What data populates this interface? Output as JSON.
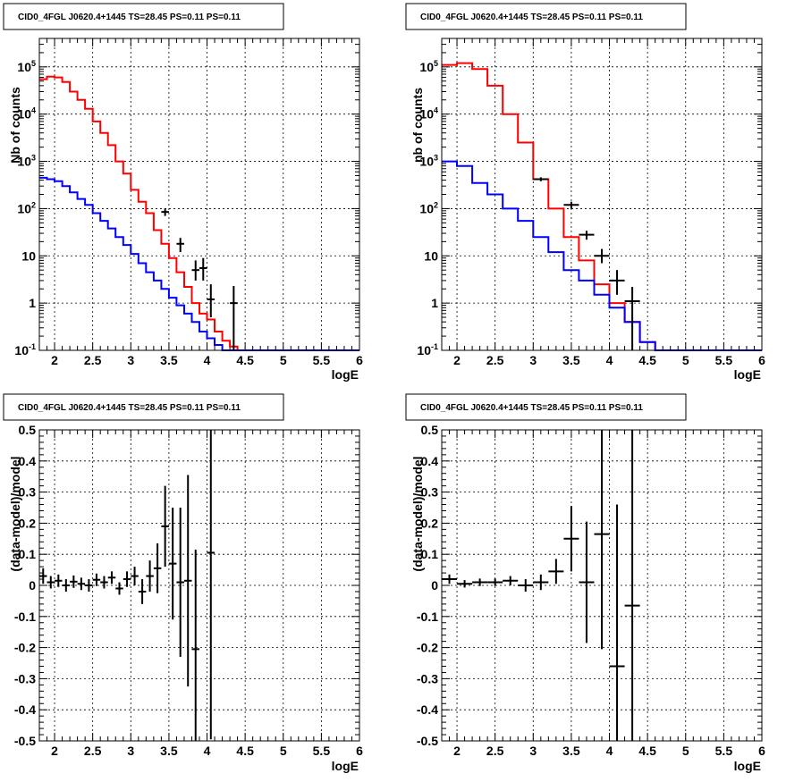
{
  "chart_data": [
    {
      "id": "p1",
      "type": "line",
      "title": "CID0_4FGL J0620.4+1445 TS=28.45 PS=0.11 PS=0.11",
      "xlabel": "logE",
      "ylabel": "Nb of counts",
      "xlim": [
        1.8,
        6.0
      ],
      "ylim": [
        0.1,
        400000
      ],
      "yscale": "log",
      "grid": true,
      "xticks": [
        "2",
        "2.5",
        "3",
        "3.5",
        "4",
        "4.5",
        "5",
        "5.5",
        "6"
      ],
      "yticks": [
        "10^-1",
        "1",
        "10",
        "10^2",
        "10^3",
        "10^4",
        "10^5"
      ],
      "bin_edges": [
        1.8,
        1.9,
        2.0,
        2.1,
        2.2,
        2.3,
        2.4,
        2.5,
        2.6,
        2.7,
        2.8,
        2.9,
        3.0,
        3.1,
        3.2,
        3.3,
        3.4,
        3.5,
        3.6,
        3.7,
        3.8,
        3.9,
        4.0,
        4.1,
        4.2,
        4.3,
        4.4,
        4.5,
        4.6,
        4.7,
        4.8,
        6.0
      ],
      "series": [
        {
          "style": "step",
          "color": "#ff0000",
          "values": [
            55000,
            62000,
            60000,
            48000,
            30000,
            20000,
            13000,
            7000,
            4000,
            2200,
            1000,
            550,
            250,
            140,
            80,
            35,
            18,
            9,
            4.5,
            2.2,
            1.0,
            0.6,
            0.45,
            0.25,
            0.16,
            0.12,
            0.1,
            0.1,
            0.1,
            0.1,
            0.1
          ]
        },
        {
          "style": "step",
          "color": "#0000ff",
          "values": [
            450,
            420,
            380,
            300,
            220,
            160,
            120,
            80,
            55,
            38,
            25,
            17,
            11,
            7,
            4.5,
            3,
            2,
            1.3,
            0.9,
            0.6,
            0.4,
            0.25,
            0.18,
            0.13,
            0.1,
            0.1,
            0.1,
            0.1,
            0.1,
            0.1,
            0.1
          ]
        },
        {
          "style": "errorbar",
          "color": "#000000",
          "xwidth": 0.1,
          "points": [
            {
              "x": 3.45,
              "y": 85,
              "lo": 70,
              "hi": 100
            },
            {
              "x": 3.65,
              "y": 18,
              "lo": 12,
              "hi": 24
            },
            {
              "x": 3.85,
              "y": 5,
              "lo": 3,
              "hi": 8
            },
            {
              "x": 3.95,
              "y": 5.5,
              "lo": 3,
              "hi": 9
            },
            {
              "x": 4.05,
              "y": 1.2,
              "lo": 0.5,
              "hi": 2.5
            },
            {
              "x": 4.35,
              "y": 1.0,
              "lo": 0.1,
              "hi": 2.3
            }
          ]
        }
      ]
    },
    {
      "id": "p2",
      "type": "line",
      "title": "CID0_4FGL J0620.4+1445 TS=28.45 PS=0.11 PS=0.11",
      "xlabel": "logE",
      "ylabel": "nb of counts",
      "xlim": [
        1.8,
        6.0
      ],
      "ylim": [
        0.1,
        400000
      ],
      "yscale": "log",
      "grid": true,
      "xticks": [
        "2",
        "2.5",
        "3",
        "3.5",
        "4",
        "4.5",
        "5",
        "5.5",
        "6"
      ],
      "yticks": [
        "10^-1",
        "1",
        "10",
        "10^2",
        "10^3",
        "10^4",
        "10^5"
      ],
      "bin_edges": [
        1.8,
        2.0,
        2.2,
        2.4,
        2.6,
        2.8,
        3.0,
        3.2,
        3.4,
        3.6,
        3.8,
        4.0,
        4.2,
        4.4,
        4.6,
        4.8,
        6.0
      ],
      "series": [
        {
          "style": "step",
          "color": "#ff0000",
          "values": [
            110000,
            120000,
            90000,
            40000,
            10000,
            2500,
            420,
            100,
            25,
            8,
            2.5,
            1.0,
            0.4,
            0.15,
            0.1,
            0.1
          ]
        },
        {
          "style": "step",
          "color": "#0000ff",
          "values": [
            1000,
            800,
            350,
            200,
            100,
            55,
            25,
            12,
            5,
            3,
            1.5,
            0.8,
            0.4,
            0.15,
            0.1,
            0.1
          ]
        },
        {
          "style": "errorbar",
          "color": "#000000",
          "xwidth": 0.2,
          "points": [
            {
              "x": 3.1,
              "y": 420,
              "lo": 380,
              "hi": 460
            },
            {
              "x": 3.5,
              "y": 120,
              "lo": 100,
              "hi": 140
            },
            {
              "x": 3.7,
              "y": 28,
              "lo": 22,
              "hi": 34
            },
            {
              "x": 3.9,
              "y": 10,
              "lo": 7,
              "hi": 14
            },
            {
              "x": 4.1,
              "y": 3,
              "lo": 1.5,
              "hi": 5
            },
            {
              "x": 4.3,
              "y": 1.1,
              "lo": 0.1,
              "hi": 2.2
            }
          ]
        }
      ]
    },
    {
      "id": "p3",
      "type": "scatter",
      "title": "CID0_4FGL J0620.4+1445 TS=28.45 PS=0.11 PS=0.11",
      "xlabel": "logE",
      "ylabel": "(data-model)/model",
      "xlim": [
        1.8,
        6.0
      ],
      "ylim": [
        -0.5,
        0.5
      ],
      "grid": true,
      "xticks": [
        "2",
        "2.5",
        "3",
        "3.5",
        "4",
        "4.5",
        "5",
        "5.5",
        "6"
      ],
      "yticks": [
        "-0.5",
        "-0.4",
        "-0.3",
        "-0.2",
        "-0.1",
        "0",
        "0.1",
        "0.2",
        "0.3",
        "0.4",
        "0.5"
      ],
      "series": [
        {
          "style": "errorbar",
          "color": "#000000",
          "xwidth": 0.1,
          "points": [
            {
              "x": 1.85,
              "y": 0.03,
              "err": 0.025
            },
            {
              "x": 1.95,
              "y": 0.01,
              "err": 0.02
            },
            {
              "x": 2.05,
              "y": 0.015,
              "err": 0.02
            },
            {
              "x": 2.15,
              "y": 0.0,
              "err": 0.02
            },
            {
              "x": 2.25,
              "y": 0.012,
              "err": 0.02
            },
            {
              "x": 2.35,
              "y": 0.005,
              "err": 0.02
            },
            {
              "x": 2.45,
              "y": 0.0,
              "err": 0.02
            },
            {
              "x": 2.55,
              "y": 0.018,
              "err": 0.02
            },
            {
              "x": 2.65,
              "y": 0.01,
              "err": 0.02
            },
            {
              "x": 2.75,
              "y": 0.025,
              "err": 0.02
            },
            {
              "x": 2.85,
              "y": -0.01,
              "err": 0.02
            },
            {
              "x": 2.95,
              "y": 0.02,
              "err": 0.025
            },
            {
              "x": 3.05,
              "y": 0.03,
              "err": 0.03
            },
            {
              "x": 3.15,
              "y": -0.02,
              "err": 0.04
            },
            {
              "x": 3.25,
              "y": 0.03,
              "err": 0.05
            },
            {
              "x": 3.35,
              "y": 0.055,
              "err": 0.08
            },
            {
              "x": 3.45,
              "y": 0.19,
              "err": 0.13
            },
            {
              "x": 3.55,
              "y": 0.07,
              "err": 0.18
            },
            {
              "x": 3.65,
              "y": 0.01,
              "err": 0.24
            },
            {
              "x": 3.75,
              "y": 0.015,
              "err": 0.34
            },
            {
              "x": 3.85,
              "y": -0.205,
              "err": 0.32
            },
            {
              "x": 4.05,
              "y": 0.105,
              "err": 0.6
            }
          ]
        }
      ]
    },
    {
      "id": "p4",
      "type": "scatter",
      "title": "CID0_4FGL J0620.4+1445 TS=28.45 PS=0.11 PS=0.11",
      "xlabel": "logE",
      "ylabel": "(data-model)/model",
      "xlim": [
        1.8,
        6.0
      ],
      "ylim": [
        -0.5,
        0.5
      ],
      "grid": true,
      "xticks": [
        "2",
        "2.5",
        "3",
        "3.5",
        "4",
        "4.5",
        "5",
        "5.5",
        "6"
      ],
      "yticks": [
        "-0.5",
        "-0.4",
        "-0.3",
        "-0.2",
        "-0.1",
        "0",
        "0.1",
        "0.2",
        "0.3",
        "0.4",
        "0.5"
      ],
      "series": [
        {
          "style": "errorbar",
          "color": "#000000",
          "xwidth": 0.2,
          "points": [
            {
              "x": 1.9,
              "y": 0.02,
              "err": 0.015
            },
            {
              "x": 2.1,
              "y": 0.005,
              "err": 0.012
            },
            {
              "x": 2.3,
              "y": 0.01,
              "err": 0.012
            },
            {
              "x": 2.5,
              "y": 0.01,
              "err": 0.012
            },
            {
              "x": 2.7,
              "y": 0.015,
              "err": 0.015
            },
            {
              "x": 2.9,
              "y": 0.0,
              "err": 0.02
            },
            {
              "x": 3.1,
              "y": 0.01,
              "err": 0.025
            },
            {
              "x": 3.3,
              "y": 0.045,
              "err": 0.04
            },
            {
              "x": 3.5,
              "y": 0.15,
              "err": 0.105
            },
            {
              "x": 3.7,
              "y": 0.01,
              "err": 0.195
            },
            {
              "x": 3.9,
              "y": 0.165,
              "err": 0.37
            },
            {
              "x": 4.1,
              "y": -0.26,
              "err": 0.52
            },
            {
              "x": 4.3,
              "y": -0.065,
              "err": 0.6
            }
          ]
        }
      ]
    }
  ]
}
